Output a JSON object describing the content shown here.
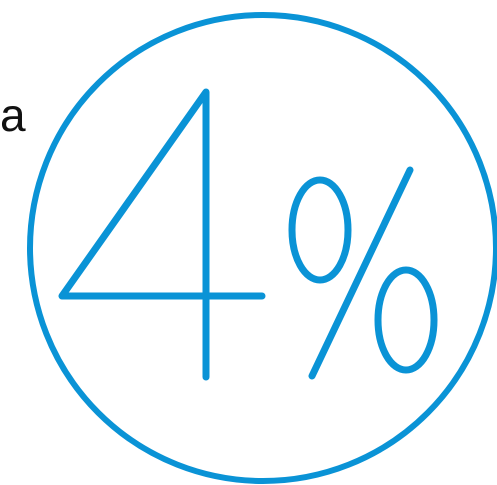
{
  "label": {
    "text": "a"
  },
  "figure": {
    "digit": "4",
    "percent_sign": "%",
    "accent_color": "#0a93d6"
  }
}
